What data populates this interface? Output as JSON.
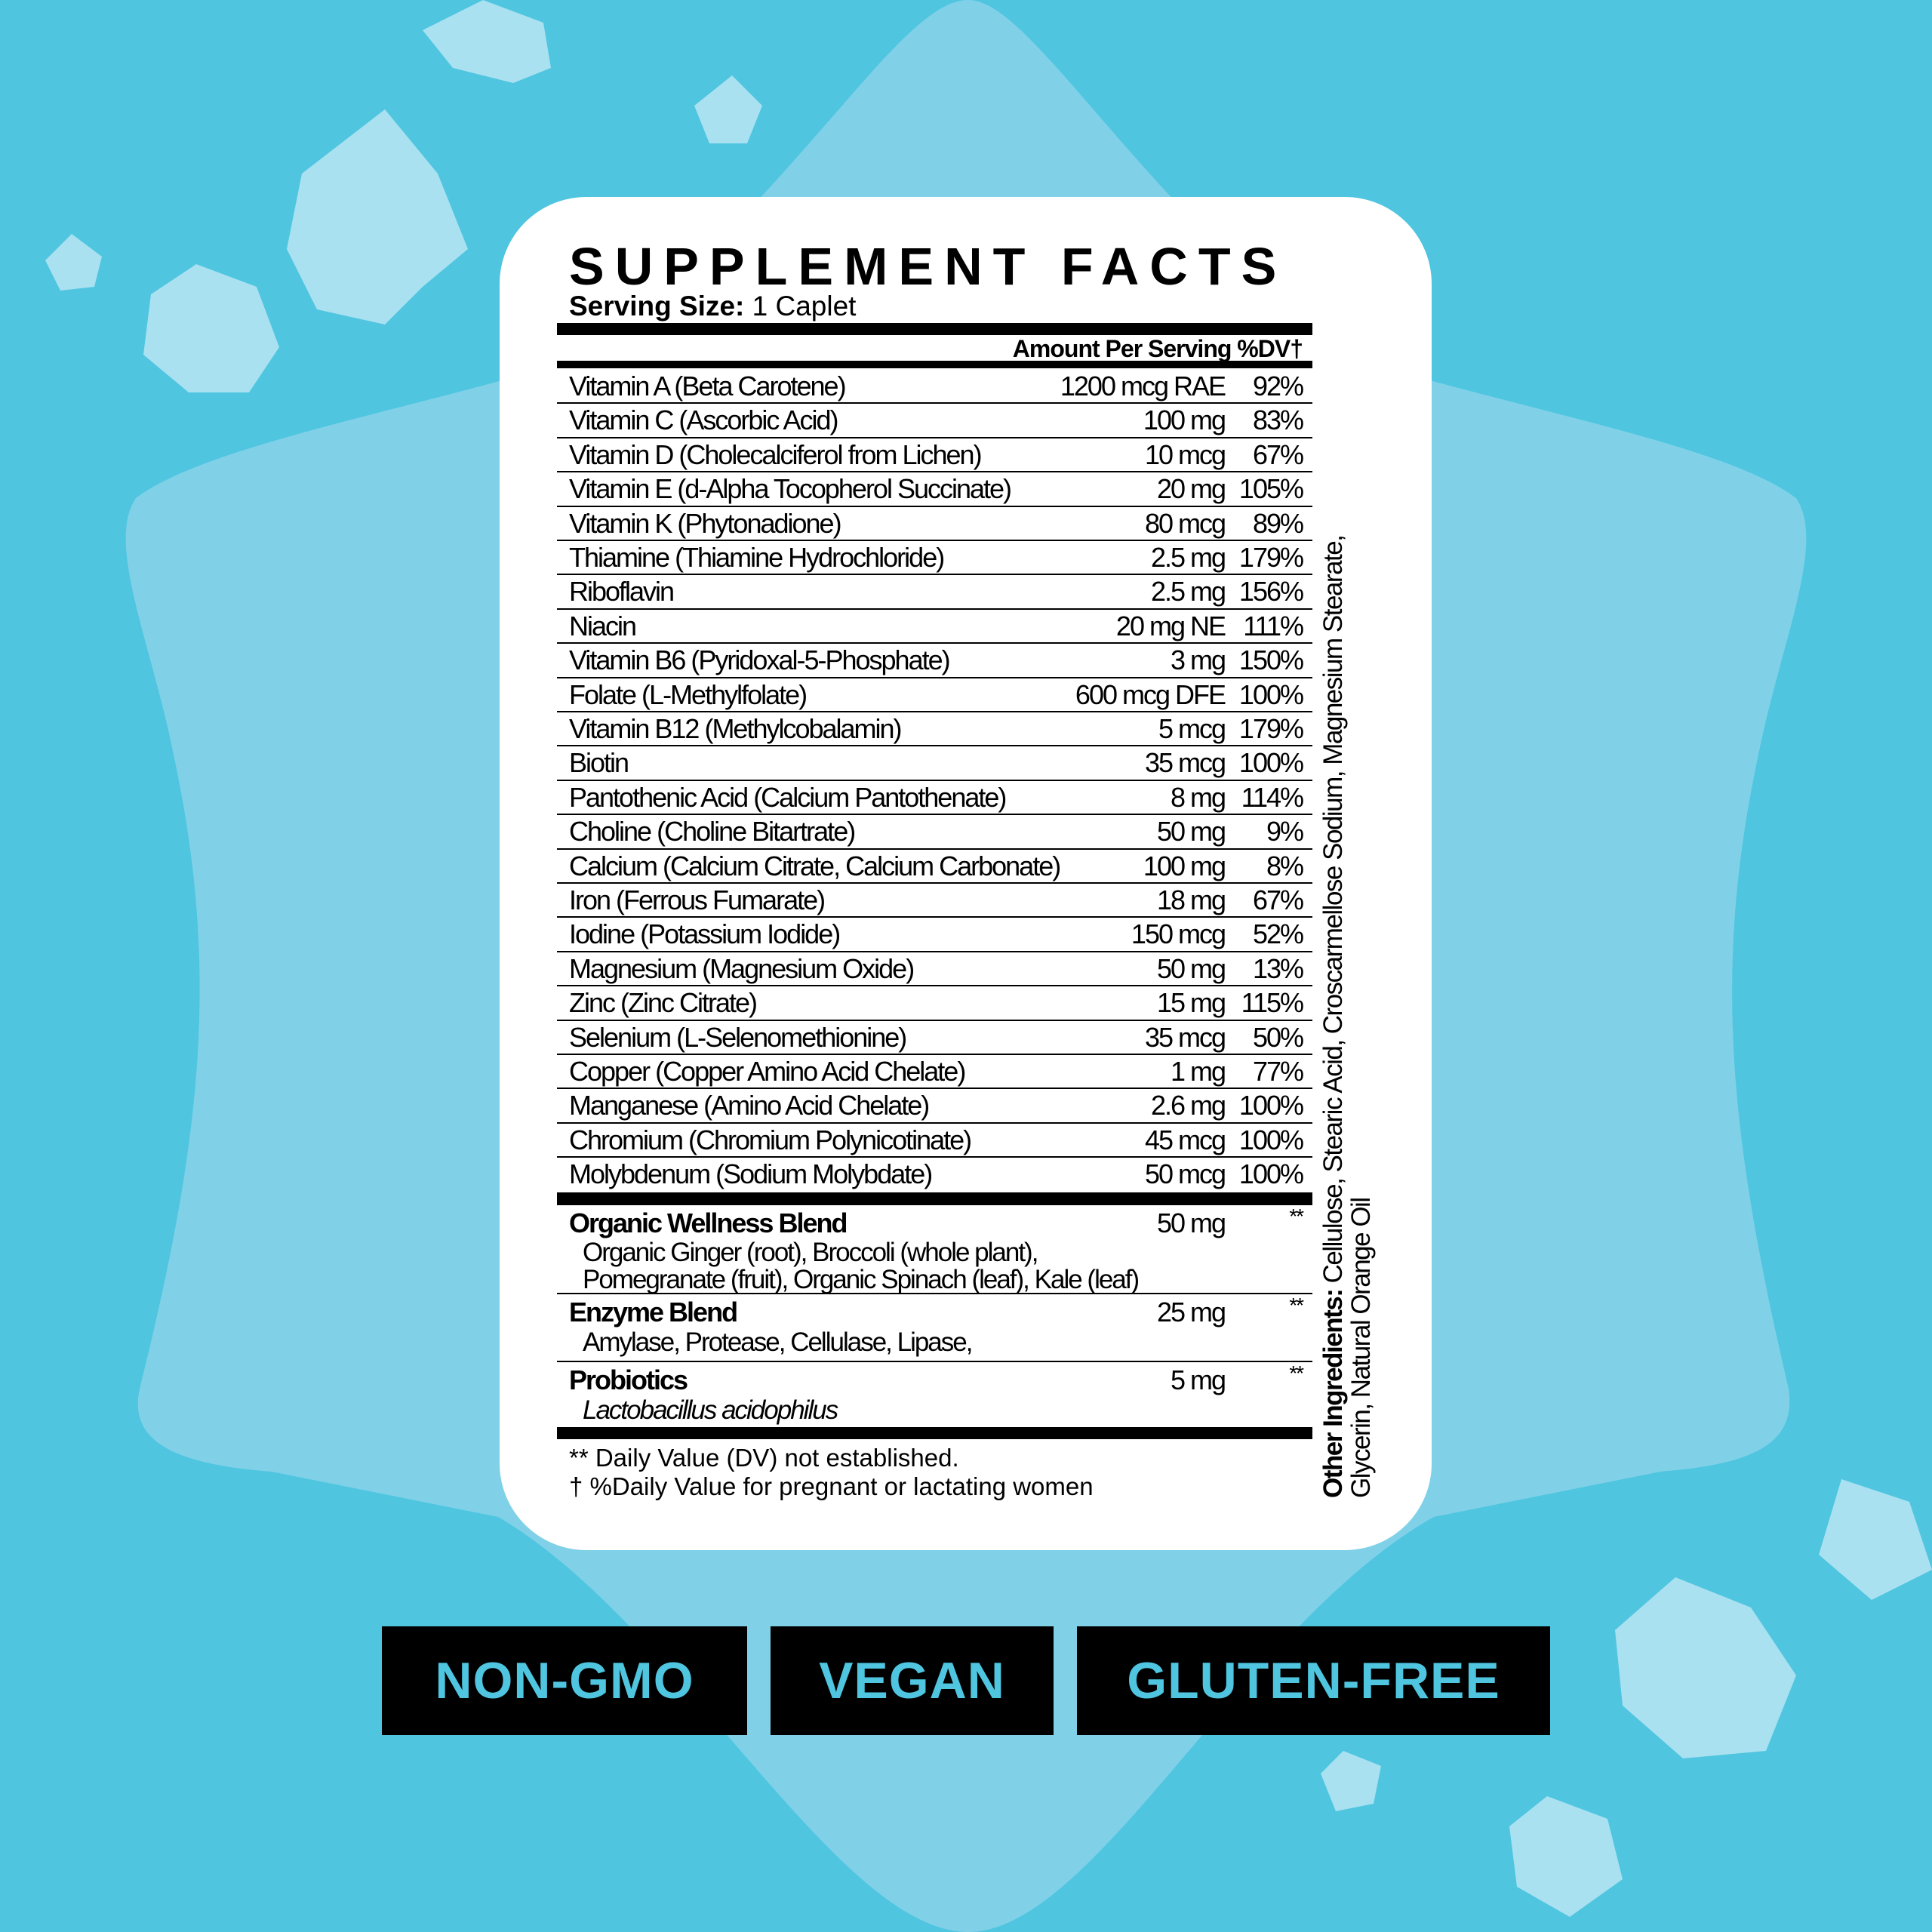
{
  "colors": {
    "background": "#4fc5e0",
    "background_shape": "#80d1e8",
    "star": "#a9e1f0",
    "badge_bg": "#000000",
    "badge_text": "#4fc5e0"
  },
  "title": "SUPPLEMENT FACTS",
  "serving": {
    "label": "Serving Size:",
    "value": "1 Caplet"
  },
  "header": "Amount Per Serving %DV†",
  "rows": [
    {
      "name": "Vitamin A (Beta Carotene)",
      "amount": "1200 mcg RAE",
      "dv": "92%"
    },
    {
      "name": "Vitamin C (Ascorbic Acid)",
      "amount": "100 mg",
      "dv": "83%"
    },
    {
      "name": "Vitamin D (Cholecalciferol from Lichen)",
      "amount": "10 mcg",
      "dv": "67%"
    },
    {
      "name": "Vitamin E (d-Alpha Tocopherol Succinate)",
      "amount": "20 mg",
      "dv": "105%"
    },
    {
      "name": "Vitamin K (Phytonadione)",
      "amount": "80 mcg",
      "dv": "89%"
    },
    {
      "name": "Thiamine (Thiamine Hydrochloride)",
      "amount": "2.5 mg",
      "dv": "179%"
    },
    {
      "name": "Riboflavin",
      "amount": "2.5 mg",
      "dv": "156%"
    },
    {
      "name": "Niacin",
      "amount": "20 mg NE",
      "dv": "111%"
    },
    {
      "name": "Vitamin B6 (Pyridoxal-5-Phosphate)",
      "amount": "3 mg",
      "dv": "150%"
    },
    {
      "name": "Folate (L-Methylfolate)",
      "amount": "600 mcg DFE",
      "dv": "100%"
    },
    {
      "name": "Vitamin B12 (Methylcobalamin)",
      "amount": "5 mcg",
      "dv": "179%"
    },
    {
      "name": "Biotin",
      "amount": "35 mcg",
      "dv": "100%"
    },
    {
      "name": "Pantothenic Acid (Calcium Pantothenate)",
      "amount": "8 mg",
      "dv": "114%"
    },
    {
      "name": "Choline (Choline Bitartrate)",
      "amount": "50 mg",
      "dv": "9%"
    },
    {
      "name": "Calcium (Calcium Citrate, Calcium Carbonate)",
      "amount": "100 mg",
      "dv": "8%"
    },
    {
      "name": "Iron (Ferrous Fumarate)",
      "amount": "18 mg",
      "dv": "67%"
    },
    {
      "name": "Iodine (Potassium Iodide)",
      "amount": "150 mcg",
      "dv": "52%"
    },
    {
      "name": "Magnesium (Magnesium Oxide)",
      "amount": "50 mg",
      "dv": "13%"
    },
    {
      "name": "Zinc (Zinc Citrate)",
      "amount": "15 mg",
      "dv": "115%"
    },
    {
      "name": "Selenium (L-Selenomethionine)",
      "amount": "35 mcg",
      "dv": "50%"
    },
    {
      "name": "Copper (Copper Amino Acid Chelate)",
      "amount": "1 mg",
      "dv": "77%"
    },
    {
      "name": "Manganese (Amino Acid Chelate)",
      "amount": "2.6 mg",
      "dv": "100%"
    },
    {
      "name": "Chromium (Chromium Polynicotinate)",
      "amount": "45 mcg",
      "dv": "100%"
    },
    {
      "name": "Molybdenum (Sodium Molybdate)",
      "amount": "50 mcg",
      "dv": "100%"
    }
  ],
  "blends": [
    {
      "name": "Organic Wellness Blend",
      "amount": "50 mg",
      "dv": "**",
      "lines": [
        "Organic Ginger (root), Broccoli (whole plant),",
        "Pomegranate (fruit), Organic Spinach (leaf), Kale (leaf)"
      ]
    },
    {
      "name": "Enzyme Blend",
      "amount": "25 mg",
      "dv": "**",
      "lines": [
        "Amylase, Protease, Cellulase, Lipase,"
      ]
    },
    {
      "name": "Probiotics",
      "amount": "5 mg",
      "dv": "**",
      "lines": [
        "Lactobacillus acidophilus"
      ]
    }
  ],
  "footnotes": [
    "** Daily Value (DV) not established.",
    "† %Daily Value for pregnant or lactating women"
  ],
  "other_ingredients": {
    "label": "Other Ingredients:",
    "line1": " Cellulose, Stearic Acid, Croscarmellose Sodium, Magnesium Stearate,",
    "line2": "Glycerin, Natural Orange Oil"
  },
  "badges": [
    "NON-GMO",
    "VEGAN",
    "GLUTEN-FREE"
  ]
}
